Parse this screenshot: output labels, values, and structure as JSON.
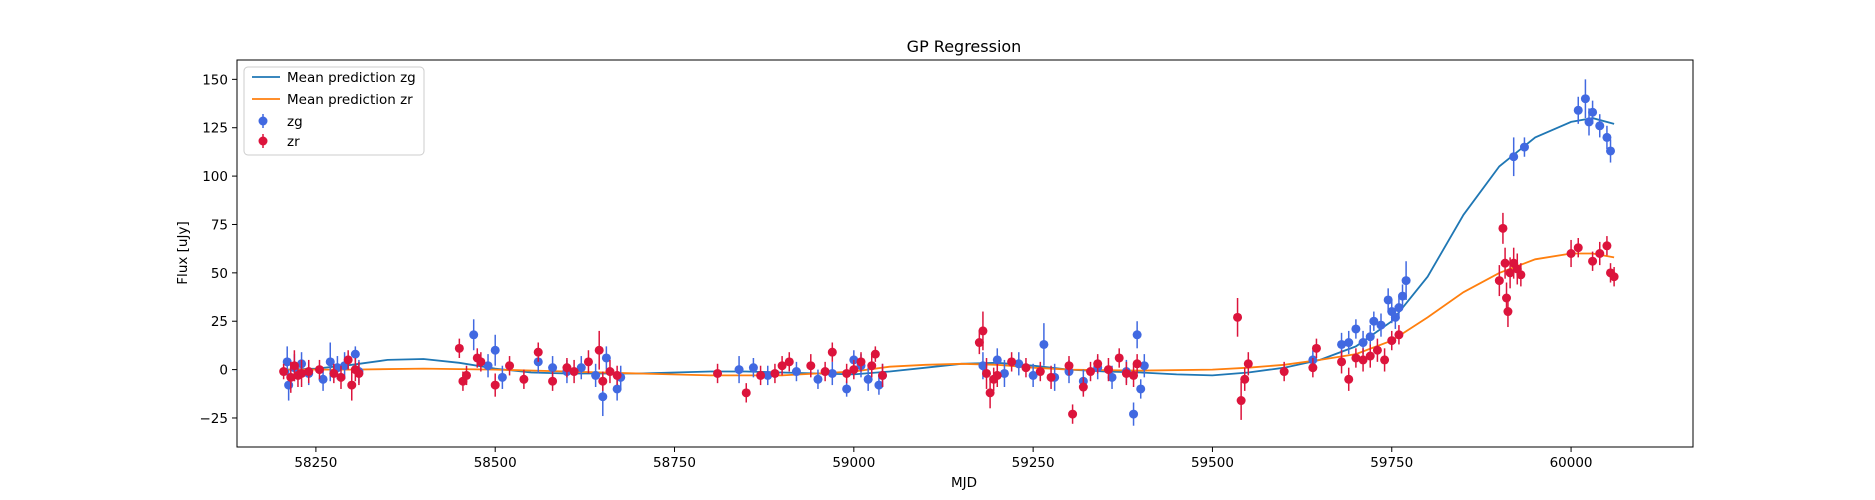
{
  "chart_data": {
    "type": "scatter",
    "title": "GP Regression",
    "xlabel": "MJD",
    "ylabel": "Flux [uJy]",
    "xlim": [
      58140,
      60170
    ],
    "ylim": [
      -40,
      160
    ],
    "x_ticks": [
      58250,
      58500,
      58750,
      59000,
      59250,
      59500,
      59750,
      60000
    ],
    "y_ticks": [
      -25,
      0,
      25,
      50,
      75,
      100,
      125,
      150
    ],
    "legend_position": "top-left",
    "colors": {
      "zg_points": "#4169e1",
      "zr_points": "#dc143c",
      "zg_line": "#1f77b4",
      "zr_line": "#ff7f0e"
    },
    "lines": [
      {
        "name": "Mean prediction zg",
        "color_key": "zg_line",
        "points": [
          [
            58210,
            0
          ],
          [
            58250,
            0.5
          ],
          [
            58300,
            2.5
          ],
          [
            58350,
            5
          ],
          [
            58400,
            5.5
          ],
          [
            58450,
            3.5
          ],
          [
            58500,
            0.5
          ],
          [
            58550,
            -1.5
          ],
          [
            58600,
            -2
          ],
          [
            58650,
            -2
          ],
          [
            58700,
            -2
          ],
          [
            58750,
            -1.5
          ],
          [
            58800,
            -1
          ],
          [
            58850,
            -1
          ],
          [
            58900,
            -1.5
          ],
          [
            58950,
            -2
          ],
          [
            59000,
            -2.5
          ],
          [
            59050,
            -1
          ],
          [
            59100,
            1
          ],
          [
            59150,
            3
          ],
          [
            59200,
            3.5
          ],
          [
            59250,
            2
          ],
          [
            59300,
            0
          ],
          [
            59350,
            -1
          ],
          [
            59400,
            -1.5
          ],
          [
            59450,
            -2.5
          ],
          [
            59500,
            -3
          ],
          [
            59550,
            -1.5
          ],
          [
            59600,
            1
          ],
          [
            59650,
            5
          ],
          [
            59700,
            12
          ],
          [
            59750,
            25
          ],
          [
            59800,
            48
          ],
          [
            59850,
            80
          ],
          [
            59900,
            105
          ],
          [
            59950,
            120
          ],
          [
            60000,
            128
          ],
          [
            60030,
            130
          ],
          [
            60060,
            127
          ]
        ]
      },
      {
        "name": "Mean prediction zr",
        "color_key": "zr_line",
        "points": [
          [
            58210,
            0
          ],
          [
            58300,
            0
          ],
          [
            58400,
            0.5
          ],
          [
            58500,
            0
          ],
          [
            58600,
            -1
          ],
          [
            58700,
            -2
          ],
          [
            58800,
            -3
          ],
          [
            58900,
            -3
          ],
          [
            59000,
            -1
          ],
          [
            59050,
            1.5
          ],
          [
            59100,
            2.5
          ],
          [
            59150,
            3
          ],
          [
            59200,
            2.5
          ],
          [
            59250,
            1
          ],
          [
            59300,
            0
          ],
          [
            59400,
            -0.5
          ],
          [
            59500,
            0
          ],
          [
            59550,
            1
          ],
          [
            59600,
            2.5
          ],
          [
            59650,
            5
          ],
          [
            59700,
            8
          ],
          [
            59750,
            15
          ],
          [
            59800,
            27
          ],
          [
            59850,
            40
          ],
          [
            59900,
            50
          ],
          [
            59950,
            57
          ],
          [
            60000,
            60
          ],
          [
            60030,
            60
          ],
          [
            60060,
            58
          ]
        ]
      }
    ],
    "series": [
      {
        "name": "zg",
        "color_key": "zg_points",
        "points": [
          [
            58210,
            4,
            8
          ],
          [
            58212,
            -8,
            8
          ],
          [
            58220,
            1,
            7
          ],
          [
            58230,
            3,
            6
          ],
          [
            58240,
            -2,
            6
          ],
          [
            58260,
            -5,
            6
          ],
          [
            58270,
            4,
            10
          ],
          [
            58280,
            1,
            6
          ],
          [
            58290,
            2,
            7
          ],
          [
            58305,
            8,
            4
          ],
          [
            58310,
            -1,
            6
          ],
          [
            58470,
            18,
            8
          ],
          [
            58490,
            2,
            6
          ],
          [
            58500,
            10,
            8
          ],
          [
            58510,
            -4,
            6
          ],
          [
            58560,
            4,
            6
          ],
          [
            58580,
            1,
            6
          ],
          [
            58600,
            -1,
            6
          ],
          [
            58620,
            1,
            6
          ],
          [
            58640,
            -3,
            6
          ],
          [
            58650,
            -14,
            10
          ],
          [
            58655,
            6,
            6
          ],
          [
            58670,
            -10,
            6
          ],
          [
            58675,
            -4,
            6
          ],
          [
            58840,
            0,
            7
          ],
          [
            58860,
            1,
            5
          ],
          [
            58880,
            -3,
            5
          ],
          [
            58920,
            -1,
            5
          ],
          [
            58950,
            -5,
            5
          ],
          [
            58970,
            -2,
            6
          ],
          [
            58990,
            -10,
            4
          ],
          [
            59000,
            5,
            5
          ],
          [
            59010,
            2,
            6
          ],
          [
            59020,
            -5,
            6
          ],
          [
            59035,
            -8,
            5
          ],
          [
            59040,
            -3,
            6
          ],
          [
            59180,
            2,
            7
          ],
          [
            59200,
            5,
            6
          ],
          [
            59210,
            -2,
            7
          ],
          [
            59230,
            3,
            6
          ],
          [
            59250,
            -3,
            6
          ],
          [
            59265,
            13,
            11
          ],
          [
            59280,
            -4,
            7
          ],
          [
            59300,
            -1,
            6
          ],
          [
            59320,
            -6,
            6
          ],
          [
            59340,
            1,
            6
          ],
          [
            59360,
            -4,
            6
          ],
          [
            59380,
            -1,
            6
          ],
          [
            59390,
            -23,
            6
          ],
          [
            59395,
            18,
            7
          ],
          [
            59400,
            -10,
            5
          ],
          [
            59405,
            2,
            6
          ],
          [
            59640,
            5,
            5
          ],
          [
            59680,
            13,
            6
          ],
          [
            59690,
            14,
            6
          ],
          [
            59700,
            21,
            5
          ],
          [
            59710,
            14,
            6
          ],
          [
            59720,
            17,
            6
          ],
          [
            59725,
            25,
            5
          ],
          [
            59735,
            23,
            6
          ],
          [
            59745,
            36,
            6
          ],
          [
            59750,
            30,
            6
          ],
          [
            59755,
            27,
            6
          ],
          [
            59760,
            32,
            6
          ],
          [
            59765,
            38,
            6
          ],
          [
            59770,
            46,
            10
          ],
          [
            59920,
            110,
            10
          ],
          [
            59935,
            115,
            5
          ],
          [
            60010,
            134,
            7
          ],
          [
            60020,
            140,
            10
          ],
          [
            60025,
            128,
            7
          ],
          [
            60030,
            133,
            6
          ],
          [
            60040,
            126,
            6
          ],
          [
            60050,
            120,
            6
          ],
          [
            60055,
            113,
            6
          ]
        ]
      },
      {
        "name": "zr",
        "color_key": "zr_points",
        "points": [
          [
            58205,
            -1,
            4
          ],
          [
            58215,
            -4,
            8
          ],
          [
            58220,
            2,
            8
          ],
          [
            58225,
            -3,
            6
          ],
          [
            58230,
            -2,
            7
          ],
          [
            58240,
            -1,
            6
          ],
          [
            58255,
            0,
            5
          ],
          [
            58275,
            -2,
            5
          ],
          [
            58285,
            -4,
            6
          ],
          [
            58295,
            5,
            5
          ],
          [
            58300,
            -8,
            8
          ],
          [
            58305,
            0,
            6
          ],
          [
            58310,
            -2,
            6
          ],
          [
            58450,
            11,
            5
          ],
          [
            58455,
            -6,
            5
          ],
          [
            58460,
            -3,
            5
          ],
          [
            58475,
            6,
            5
          ],
          [
            58480,
            4,
            5
          ],
          [
            58500,
            -8,
            6
          ],
          [
            58520,
            2,
            5
          ],
          [
            58540,
            -5,
            5
          ],
          [
            58560,
            9,
            5
          ],
          [
            58580,
            -6,
            5
          ],
          [
            58600,
            1,
            5
          ],
          [
            58610,
            -1,
            6
          ],
          [
            58630,
            4,
            6
          ],
          [
            58645,
            10,
            10
          ],
          [
            58650,
            -6,
            5
          ],
          [
            58660,
            -1,
            6
          ],
          [
            58670,
            -3,
            5
          ],
          [
            58810,
            -2,
            5
          ],
          [
            58850,
            -12,
            5
          ],
          [
            58870,
            -3,
            5
          ],
          [
            58890,
            -2,
            5
          ],
          [
            58900,
            2,
            5
          ],
          [
            58910,
            4,
            5
          ],
          [
            58940,
            2,
            6
          ],
          [
            58960,
            -1,
            5
          ],
          [
            58970,
            9,
            5
          ],
          [
            58990,
            -2,
            5
          ],
          [
            59000,
            0,
            5
          ],
          [
            59010,
            4,
            5
          ],
          [
            59025,
            2,
            6
          ],
          [
            59030,
            8,
            4
          ],
          [
            59040,
            -3,
            6
          ],
          [
            59175,
            14,
            6
          ],
          [
            59180,
            20,
            10
          ],
          [
            59185,
            -2,
            8
          ],
          [
            59190,
            -12,
            8
          ],
          [
            59195,
            -5,
            6
          ],
          [
            59200,
            -3,
            6
          ],
          [
            59220,
            4,
            5
          ],
          [
            59240,
            1,
            5
          ],
          [
            59260,
            -1,
            5
          ],
          [
            59275,
            -4,
            6
          ],
          [
            59300,
            2,
            5
          ],
          [
            59305,
            -23,
            5
          ],
          [
            59320,
            -9,
            5
          ],
          [
            59330,
            -1,
            5
          ],
          [
            59340,
            3,
            5
          ],
          [
            59355,
            0,
            6
          ],
          [
            59370,
            6,
            5
          ],
          [
            59380,
            -2,
            6
          ],
          [
            59390,
            -3,
            6
          ],
          [
            59395,
            3,
            5
          ],
          [
            59535,
            27,
            10
          ],
          [
            59540,
            -16,
            10
          ],
          [
            59545,
            -5,
            6
          ],
          [
            59550,
            3,
            6
          ],
          [
            59600,
            -1,
            5
          ],
          [
            59640,
            1,
            5
          ],
          [
            59645,
            11,
            5
          ],
          [
            59680,
            4,
            6
          ],
          [
            59690,
            -5,
            6
          ],
          [
            59700,
            6,
            5
          ],
          [
            59710,
            5,
            6
          ],
          [
            59720,
            7,
            6
          ],
          [
            59730,
            10,
            6
          ],
          [
            59740,
            5,
            6
          ],
          [
            59750,
            15,
            5
          ],
          [
            59760,
            18,
            5
          ],
          [
            59900,
            46,
            8
          ],
          [
            59905,
            73,
            8
          ],
          [
            59908,
            55,
            8
          ],
          [
            59910,
            37,
            8
          ],
          [
            59912,
            30,
            8
          ],
          [
            59915,
            50,
            8
          ],
          [
            59920,
            55,
            8
          ],
          [
            59925,
            52,
            8
          ],
          [
            59930,
            49,
            6
          ],
          [
            60000,
            60,
            7
          ],
          [
            60010,
            63,
            5
          ],
          [
            60030,
            56,
            5
          ],
          [
            60040,
            60,
            6
          ],
          [
            60050,
            64,
            5
          ],
          [
            60055,
            50,
            5
          ],
          [
            60060,
            48,
            5
          ]
        ]
      }
    ]
  }
}
